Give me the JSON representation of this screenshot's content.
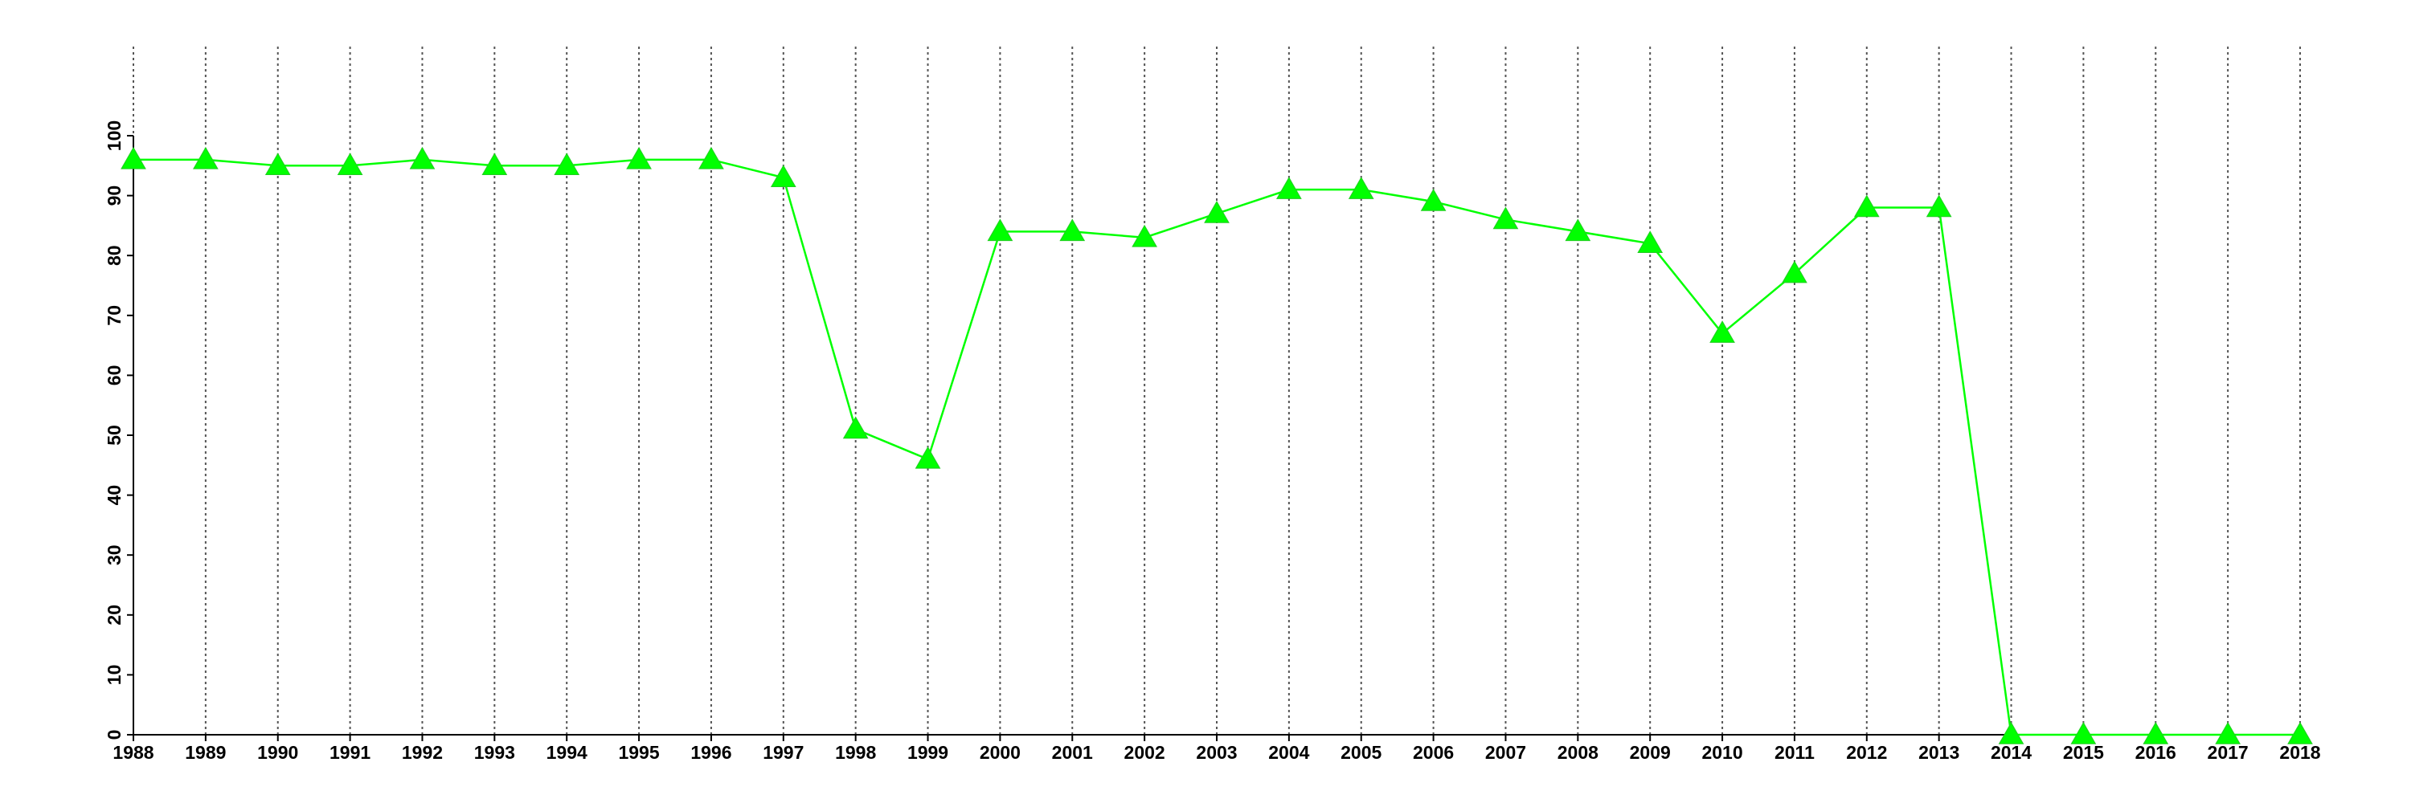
{
  "chart_data": {
    "type": "line",
    "x": [
      1988,
      1989,
      1990,
      1991,
      1992,
      1993,
      1994,
      1995,
      1996,
      1997,
      1998,
      1999,
      2000,
      2001,
      2002,
      2003,
      2004,
      2005,
      2006,
      2007,
      2008,
      2009,
      2010,
      2011,
      2012,
      2013,
      2014,
      2015,
      2016,
      2017,
      2018
    ],
    "values": [
      96,
      96,
      95,
      95,
      96,
      95,
      95,
      96,
      96,
      93,
      51,
      46,
      84,
      84,
      83,
      87,
      91,
      91,
      89,
      86,
      84,
      82,
      67,
      77,
      88,
      88,
      0,
      0,
      0,
      0,
      0
    ],
    "color": "#00ff00",
    "xlim": [
      1988,
      2018
    ],
    "xticks": [
      1988,
      1989,
      1990,
      1991,
      1992,
      1993,
      1994,
      1995,
      1996,
      1997,
      1998,
      1999,
      2000,
      2001,
      2002,
      2003,
      2004,
      2005,
      2006,
      2007,
      2008,
      2009,
      2010,
      2011,
      2012,
      2013,
      2014,
      2015,
      2016,
      2017,
      2018
    ],
    "ylim": [
      0,
      100
    ],
    "yticks": [
      0,
      10,
      20,
      30,
      40,
      50,
      60,
      70,
      80,
      90,
      100
    ],
    "grid": true
  }
}
